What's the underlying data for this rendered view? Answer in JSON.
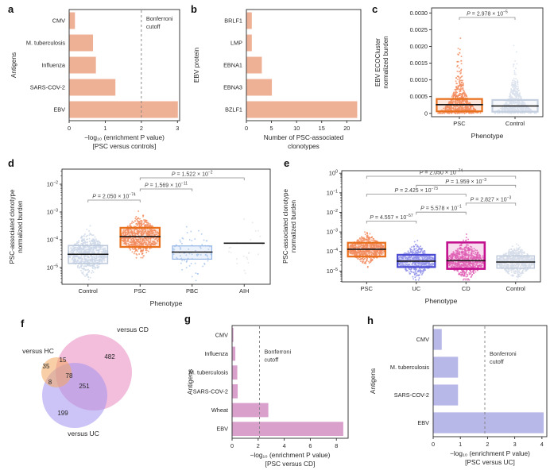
{
  "figure": {
    "panels": [
      "a",
      "b",
      "c",
      "d",
      "e",
      "f",
      "g",
      "h"
    ]
  },
  "chart_data": [
    {
      "panel": "a",
      "type": "bar",
      "categories": [
        "CMV",
        "M. tuberculosis",
        "Influenza",
        "SARS-COV-2",
        "EBV"
      ],
      "values": [
        0.15,
        0.65,
        0.73,
        1.27,
        3.0
      ],
      "xlim": [
        0,
        3.06
      ],
      "xticks": [
        0,
        1,
        2,
        3
      ],
      "cutoff": {
        "x": 2.0,
        "label_lines": [
          "Bonferroni",
          "cutoff"
        ]
      },
      "xlabel_lines": [
        "−log₁₀ (enrichment P value)",
        "[PSC versus controls]"
      ],
      "ylabel": "Antigens",
      "bar_color": "#efb195"
    },
    {
      "panel": "b",
      "type": "bar",
      "categories": [
        "BRLF1",
        "LMP",
        "EBNA1",
        "EBNA3",
        "BZLF1"
      ],
      "values": [
        1,
        1,
        3,
        5,
        22
      ],
      "xlim": [
        0,
        22.8
      ],
      "xticks": [
        0,
        5,
        10,
        15,
        20
      ],
      "xlabel_lines": [
        "Number of PSC-associated",
        "clonotypes"
      ],
      "ylabel": "EBV protein",
      "bar_color": "#efb195"
    },
    {
      "panel": "c",
      "type": "strip",
      "scale": "linear",
      "ylim": [
        -0.0001,
        0.00315
      ],
      "yticks": [
        {
          "v": 0,
          "label": "0"
        },
        {
          "v": 0.0005,
          "label": "0.0005"
        },
        {
          "v": 0.001,
          "label": "0.0010"
        },
        {
          "v": 0.0015,
          "label": "0.0015"
        },
        {
          "v": 0.002,
          "label": "0.0020"
        },
        {
          "v": 0.0025,
          "label": "0.0025"
        },
        {
          "v": 0.003,
          "label": "0.0030"
        }
      ],
      "ylabel_lines": [
        "EBV ECOCluster",
        "normalized burden"
      ],
      "xlabel": "Phenotype",
      "groups": [
        {
          "name": "PSC",
          "color": "#f28b5e",
          "edge": "#e8701c",
          "edgeW": 2.2,
          "n": 620,
          "dist": {
            "kind": "exp",
            "scale": 0.00036,
            "max": 0.0027
          },
          "box": [
            6e-05,
            0.00043
          ],
          "median": 0.00026
        },
        {
          "name": "Control",
          "color": "#d8e0ec",
          "edge": "#c4cfdf",
          "edgeW": 2.2,
          "n": 620,
          "dist": {
            "kind": "exp",
            "scale": 0.0003,
            "max": 0.00205
          },
          "box": [
            5e-05,
            0.0004
          ],
          "median": 0.00022
        }
      ],
      "annotations": [
        {
          "a": "PSC",
          "b": "Control",
          "row": 0,
          "p": {
            "t": "P = 2.978 × 10",
            "e": "−5"
          }
        }
      ]
    },
    {
      "panel": "d",
      "type": "strip",
      "scale": "log",
      "ylim": [
        2.5e-06,
        0.035
      ],
      "yticks": [
        {
          "v": 0.01,
          "exp": "−2"
        },
        {
          "v": 0.001,
          "exp": "−3"
        },
        {
          "v": 0.0001,
          "exp": "−4"
        },
        {
          "v": 1e-05,
          "exp": "−5"
        }
      ],
      "ylabel_lines": [
        "PSC-associated clonotype",
        "normalized burden"
      ],
      "xlabel": "Phenotype",
      "groups": [
        {
          "name": "Control",
          "color": "#ccd7e7",
          "edge": "#bac7da",
          "edgeW": 1.4,
          "n": 680,
          "median": 3e-05,
          "sigma": 0.32,
          "box": [
            1.4e-05,
            6.2e-05
          ]
        },
        {
          "name": "PSC",
          "color": "#f28b5e",
          "edge": "#e8701c",
          "edgeW": 2.2,
          "n": 680,
          "median": 0.00013,
          "sigma": 0.3,
          "box": [
            5.5e-05,
            0.00027
          ]
        },
        {
          "name": "PBC",
          "color": "#a9c6ec",
          "edge": "#93b6e6",
          "edgeW": 1.2,
          "n": 85,
          "median": 3.6e-05,
          "sigma": 0.42,
          "box": [
            2e-05,
            6e-05
          ]
        },
        {
          "name": "AIH",
          "color": "#e3e3e6",
          "n": 24,
          "median": 7.5e-05,
          "sigma": 0.45
        }
      ],
      "annotations": [
        {
          "a": "PSC",
          "b": "AIH",
          "row": 0,
          "p": {
            "t": "P = 1.522 × 10",
            "e": "−2"
          }
        },
        {
          "a": "PSC",
          "b": "PBC",
          "row": 1,
          "p": {
            "t": "P = 1.569 × 10",
            "e": "−11"
          }
        },
        {
          "a": "Control",
          "b": "PSC",
          "row": 2,
          "p": {
            "t": "P = 2.050 × 10",
            "e": "−74"
          }
        }
      ]
    },
    {
      "panel": "e",
      "type": "strip",
      "scale": "log",
      "ylim": [
        2.8e-06,
        1.35
      ],
      "yticks": [
        {
          "v": 1,
          "exp": "0"
        },
        {
          "v": 0.1,
          "exp": "−1"
        },
        {
          "v": 0.01,
          "exp": "−2"
        },
        {
          "v": 0.001,
          "exp": "−3"
        },
        {
          "v": 0.0001,
          "exp": "−4"
        },
        {
          "v": 1e-05,
          "exp": "−5"
        }
      ],
      "ylabel_lines": [
        "PSC-associated clonotype",
        "normalized burden"
      ],
      "xlabel": "Phenotype",
      "groups": [
        {
          "name": "PSC",
          "color": "#f28b5e",
          "edge": "#e8701c",
          "edgeW": 2.2,
          "n": 680,
          "median": 0.00013,
          "sigma": 0.3,
          "box": [
            5.5e-05,
            0.00028
          ]
        },
        {
          "name": "UC",
          "color": "#9191ea",
          "edge": "#4a4ad2",
          "edgeW": 2.2,
          "n": 560,
          "median": 3.2e-05,
          "sigma": 0.33,
          "box": [
            1.6e-05,
            6.8e-05
          ]
        },
        {
          "name": "CD",
          "color": "#e160b4",
          "edge": "#c2108e",
          "edgeW": 2.6,
          "n": 720,
          "median": 3.4e-05,
          "sigma": 0.38,
          "box": [
            1.3e-05,
            0.00029
          ]
        },
        {
          "name": "Control",
          "color": "#d4dce8",
          "edge": "#c0cbdb",
          "edgeW": 1.4,
          "n": 680,
          "median": 2.9e-05,
          "sigma": 0.32,
          "box": [
            1.4e-05,
            6e-05
          ]
        }
      ],
      "annotations": [
        {
          "a": "PSC",
          "b": "Control",
          "row": 0,
          "p": {
            "t": "P = 2.050 × 10",
            "e": "−74"
          }
        },
        {
          "a": "UC",
          "b": "Control",
          "row": 1,
          "p": {
            "t": "P = 1.959 × 10",
            "e": "−3"
          }
        },
        {
          "a": "PSC",
          "b": "CD",
          "row": 2,
          "p": {
            "t": "P = 2.425 × 10",
            "e": "−73"
          }
        },
        {
          "a": "CD",
          "b": "Control",
          "row": 3,
          "p": {
            "t": "P = 2.827 × 10",
            "e": "−3"
          }
        },
        {
          "a": "UC",
          "b": "CD",
          "row": 4,
          "p": {
            "t": "P = 5.578 × 10",
            "e": "−1"
          }
        },
        {
          "a": "PSC",
          "b": "UC",
          "row": 5,
          "p": {
            "t": "P = 4.557 × 10",
            "e": "−57"
          }
        }
      ]
    },
    {
      "panel": "f",
      "type": "venn",
      "sets": [
        {
          "id": "hc",
          "label": "versus HC",
          "color": "#f2a85e"
        },
        {
          "id": "cd",
          "label": "versus CD",
          "color": "#e987c0"
        },
        {
          "id": "uc",
          "label": "versus UC",
          "color": "#a394ee"
        }
      ],
      "regions": [
        {
          "id": "hc",
          "value": "35"
        },
        {
          "id": "cd",
          "value": "482"
        },
        {
          "id": "uc",
          "value": "199"
        },
        {
          "id": "hc_cd",
          "value": "15"
        },
        {
          "id": "hc_uc",
          "value": "8"
        },
        {
          "id": "cd_uc",
          "value": "251"
        },
        {
          "id": "all",
          "value": "78"
        }
      ]
    },
    {
      "panel": "g",
      "type": "bar",
      "categories": [
        "CMV",
        "Influenza",
        "M. tuberculosis",
        "SARS-COV-2",
        "Wheat",
        "EBV"
      ],
      "values": [
        0.07,
        0.22,
        0.37,
        0.4,
        2.75,
        8.5
      ],
      "xlim": [
        0,
        8.9
      ],
      "xticks": [
        0,
        2,
        4,
        6,
        8
      ],
      "cutoff": {
        "x": 2.1,
        "label_lines": [
          "Bonferroni",
          "cutoff"
        ]
      },
      "xlabel_lines": [
        "−log₁₀ (enrichment P value)",
        "[PSC versus CD]"
      ],
      "ylabel": "Antigens",
      "bar_color": "#d9a0cc"
    },
    {
      "panel": "h",
      "type": "bar",
      "categories": [
        "CMV",
        "M. tuberculosis",
        "SARS-COV-2",
        "EBV"
      ],
      "values": [
        0.3,
        0.9,
        0.9,
        4.05
      ],
      "xlim": [
        0,
        4.18
      ],
      "xticks": [
        0,
        1,
        2,
        3,
        4
      ],
      "cutoff": {
        "x": 1.9,
        "label_lines": [
          "Bonferroni",
          "cutoff"
        ]
      },
      "xlabel_lines": [
        "−log₁₀ (enrichment P value)",
        "[PSC versus UC]"
      ],
      "ylabel": "Antigens",
      "bar_color": "#b8b8e8"
    }
  ]
}
